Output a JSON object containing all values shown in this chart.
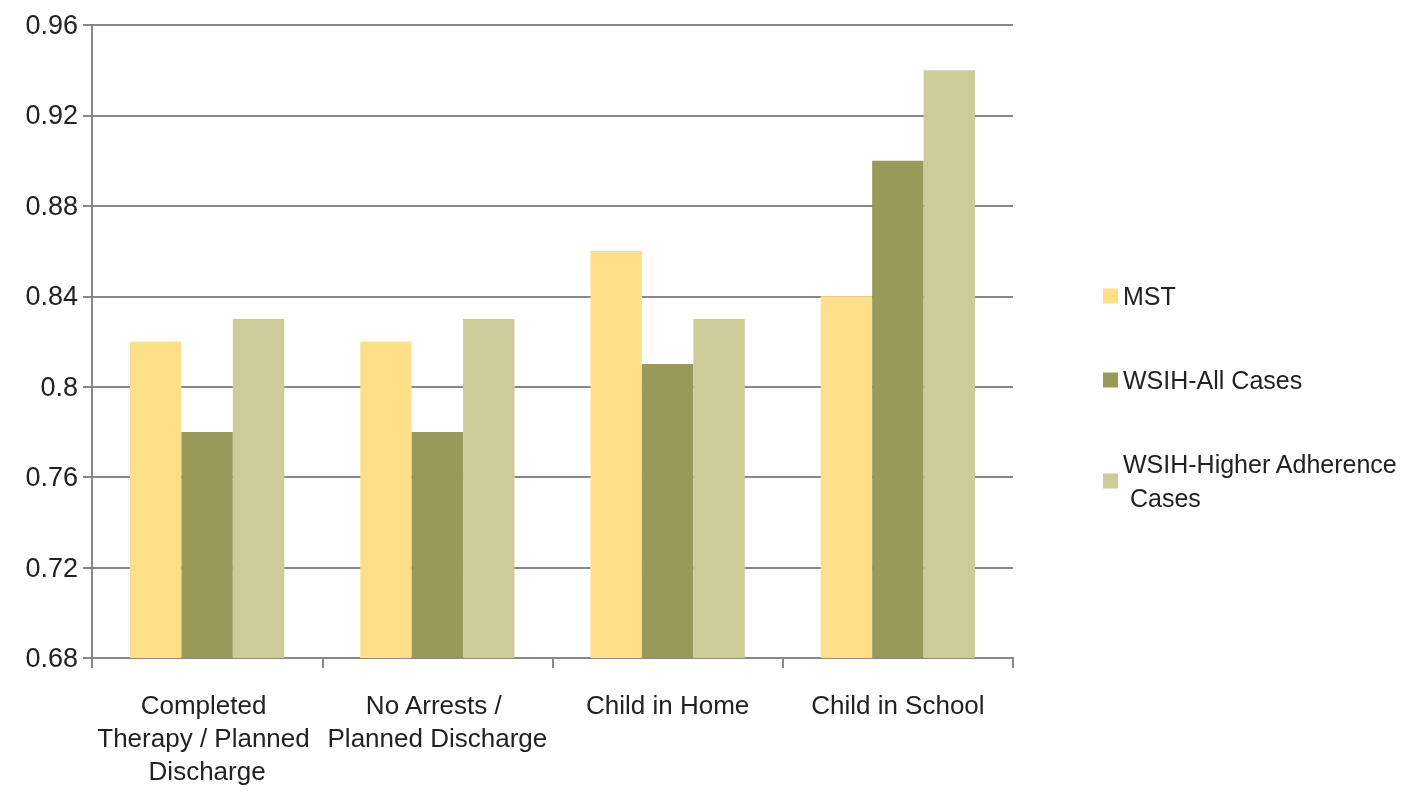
{
  "chart_data": {
    "type": "bar",
    "categories": [
      "Completed Therapy / Planned Discharge",
      "No Arrests / Planned Discharge",
      "Child in Home",
      "Child in School"
    ],
    "series": [
      {
        "name": "MST",
        "color": "#fddf87",
        "values": [
          0.82,
          0.82,
          0.86,
          0.84
        ]
      },
      {
        "name": "WSIH-All Cases",
        "color": "#999959",
        "values": [
          0.78,
          0.78,
          0.81,
          0.9
        ]
      },
      {
        "name": "WSIH-Higher Adherence Cases",
        "color": "#cdcb98",
        "values": [
          0.83,
          0.83,
          0.83,
          0.94
        ]
      }
    ],
    "ylim": [
      0.68,
      0.96
    ],
    "yticks": [
      0.68,
      0.72,
      0.76,
      0.8,
      0.84,
      0.88,
      0.92,
      0.96
    ],
    "grid": "y",
    "legend": "right"
  }
}
